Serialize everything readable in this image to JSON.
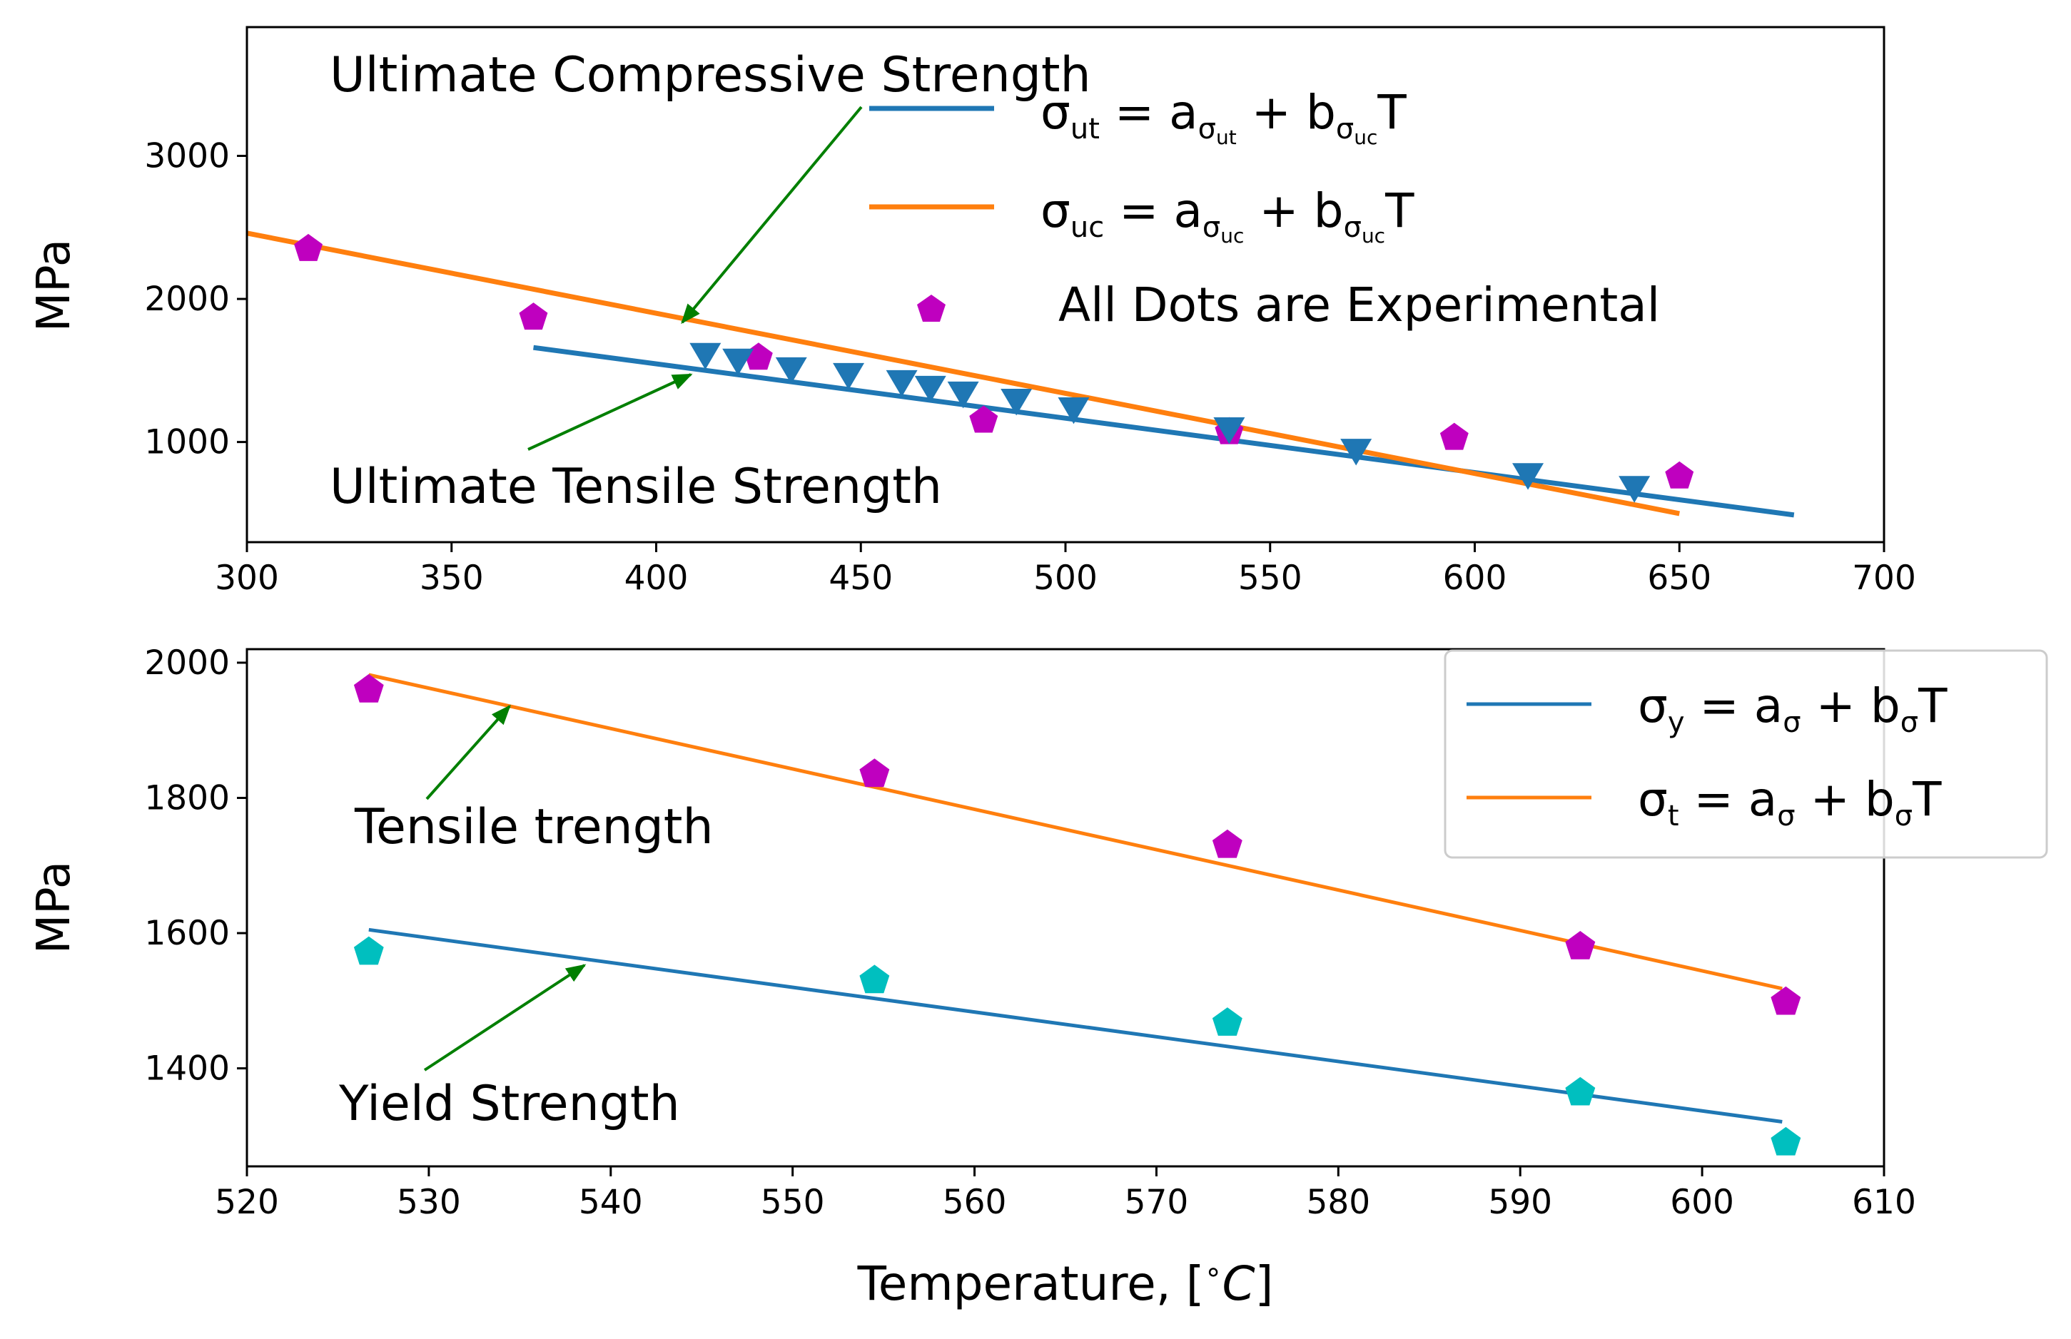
{
  "chart_data": [
    {
      "type": "scatter",
      "xlim": [
        300,
        700
      ],
      "ylim": [
        300,
        3900
      ],
      "xticks": [
        "300",
        "350",
        "400",
        "450",
        "500",
        "550",
        "600",
        "650",
        "700"
      ],
      "yticks": [
        "1000",
        "2000",
        "3000"
      ],
      "xtick_values": [
        300,
        350,
        400,
        450,
        500,
        550,
        600,
        650,
        700
      ],
      "ytick_values": [
        1000,
        2000,
        3000
      ],
      "ylabel": "MPa",
      "xlabel": "",
      "grid": false,
      "legend_position": "upper-right",
      "series": [
        {
          "name": "σut = aσut + bσuc T",
          "kind": "line",
          "color": "#1f77b4",
          "x": [
            370,
            678
          ],
          "y": [
            1660,
            490
          ]
        },
        {
          "name": "σuc = aσuc + bσuc T",
          "kind": "line",
          "color": "#ff7f0e",
          "x": [
            300,
            650
          ],
          "y": [
            2460,
            500
          ]
        },
        {
          "name": "All Dots are Experimental",
          "kind": "scatter",
          "marker": "pentagon",
          "color": "#bf00bf",
          "x": [
            315,
            370,
            425,
            480,
            540,
            595,
            650
          ],
          "y": [
            2350,
            1870,
            1590,
            1150,
            1070,
            1030,
            760
          ]
        },
        {
          "kind": "scatter",
          "marker": "triangle-down",
          "color": "#1f77b4",
          "x": [
            412,
            420,
            433,
            447,
            460,
            467,
            475,
            488,
            502,
            540,
            571,
            613,
            639
          ],
          "y": [
            1610,
            1570,
            1510,
            1470,
            1420,
            1380,
            1340,
            1290,
            1230,
            1090,
            940,
            770,
            680
          ]
        }
      ],
      "annotations": [
        {
          "text": "Ultimate Compressive Strength",
          "x": 320,
          "y": 3550,
          "arrow_to": [
            405,
            1860
          ],
          "arrow_from": [
            452,
            3340
          ]
        },
        {
          "text": "Ultimate Tensile Strength",
          "x": 320,
          "y": 680,
          "arrow_to": [
            410,
            1520
          ],
          "arrow_from": [
            370,
            1000
          ]
        }
      ],
      "legend": {
        "entries": [
          {
            "kind": "line",
            "color": "#1f77b4",
            "main": "σ",
            "sub": "ut",
            "rhs_a": "a",
            "rhs_a_sub": "σ",
            "rhs_a_subsub": "ut",
            "rhs_b": "b",
            "rhs_b_sub": "σ",
            "rhs_b_subsub": "uc",
            "tail": "T"
          },
          {
            "kind": "line",
            "color": "#ff7f0e",
            "main": "σ",
            "sub": "uc",
            "rhs_a": "a",
            "rhs_a_sub": "σ",
            "rhs_a_subsub": "uc",
            "rhs_b": "b",
            "rhs_b_sub": "σ",
            "rhs_b_subsub": "uc",
            "tail": "T"
          },
          {
            "kind": "marker",
            "color": "#bf00bf",
            "label": "All Dots are Experimental"
          }
        ]
      }
    },
    {
      "type": "scatter",
      "xlim": [
        520,
        610
      ],
      "ylim": [
        1255,
        2020
      ],
      "xticks": [
        "520",
        "530",
        "540",
        "550",
        "560",
        "570",
        "580",
        "590",
        "600",
        "610"
      ],
      "yticks": [
        "1400",
        "1600",
        "1800",
        "2000"
      ],
      "xtick_values": [
        520,
        530,
        540,
        550,
        560,
        570,
        580,
        590,
        600,
        610
      ],
      "ytick_values": [
        1400,
        1600,
        1800,
        2000
      ],
      "ylabel": "MPa",
      "xlabel": "Temperature, [∘C]",
      "grid": false,
      "legend_position": "upper-right",
      "series": [
        {
          "name": "σy = aσ + bσ T",
          "kind": "line",
          "color": "#1f77b4",
          "x": [
            526.7,
            604.4
          ],
          "y": [
            1605,
            1321
          ]
        },
        {
          "name": "σt = aσ + bσ T",
          "kind": "line",
          "color": "#ff7f0e",
          "x": [
            526.7,
            604.4
          ],
          "y": [
            1982,
            1518
          ]
        },
        {
          "kind": "scatter",
          "marker": "pentagon",
          "color": "#bf00bf",
          "x": [
            526.7,
            554.5,
            573.9,
            593.3,
            604.6
          ],
          "y": [
            1960,
            1835,
            1730,
            1580,
            1498
          ]
        },
        {
          "kind": "scatter",
          "marker": "pentagon",
          "color": "#00bfbf",
          "x": [
            526.7,
            554.5,
            573.9,
            593.3,
            604.6
          ],
          "y": [
            1572,
            1530,
            1467,
            1364,
            1290
          ]
        }
      ],
      "annotations": [
        {
          "text": "Tensile trength",
          "x": 526,
          "y": 1745,
          "arrow_to": [
            534.3,
            1935
          ],
          "arrow_from": [
            529.8,
            1804
          ]
        },
        {
          "text": "Yield Strength",
          "x": 525,
          "y": 1330,
          "arrow_to": [
            538.3,
            1556
          ],
          "arrow_from": [
            529.6,
            1395
          ]
        }
      ],
      "legend": {
        "entries": [
          {
            "kind": "line",
            "color": "#1f77b4",
            "main": "σ",
            "sub": "y",
            "rhs_a": "a",
            "rhs_a_sub": "σ",
            "rhs_b": "b",
            "rhs_b_sub": "σ",
            "tail": "T"
          },
          {
            "kind": "line",
            "color": "#ff7f0e",
            "main": "σ",
            "sub": "t",
            "rhs_a": "a",
            "rhs_a_sub": "σ",
            "rhs_b": "b",
            "rhs_b_sub": "σ",
            "tail": "T"
          }
        ]
      }
    }
  ]
}
